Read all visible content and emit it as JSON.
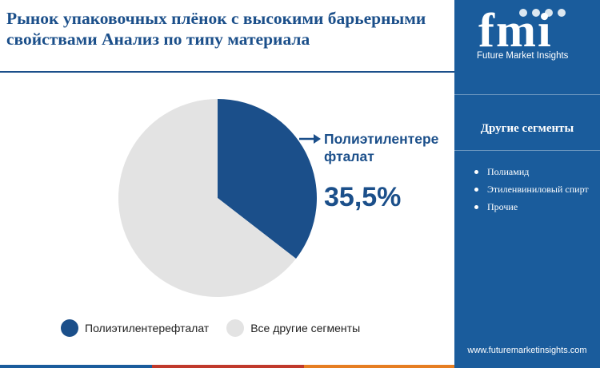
{
  "title": "Рынок упаковочных плёнок с высокими барьерными свойствами Анализ по типу материала",
  "chart_data": {
    "type": "pie",
    "categories": [
      "Полиэтилентерефталат",
      "Все другие сегменты"
    ],
    "values": [
      35.5,
      64.5
    ],
    "colors": [
      "#1b4f8a",
      "#e3e3e3"
    ],
    "legend_position": "bottom",
    "callout": {
      "label": "Полиэтилентере фталат",
      "value": "35,5%"
    }
  },
  "legend": [
    {
      "label": "Полиэтилентерефталат",
      "color": "#1b4f8a"
    },
    {
      "label": "Все другие сегменты",
      "color": "#e3e3e3"
    }
  ],
  "sidebar": {
    "logo_text": "Future Market Insights",
    "heading": "Другие сегменты",
    "items": [
      "Полиамид",
      "Этиленвиниловый спирт",
      "Прочие"
    ],
    "website": "www.futuremarketinsights.com",
    "background": "#1a5c9c"
  }
}
